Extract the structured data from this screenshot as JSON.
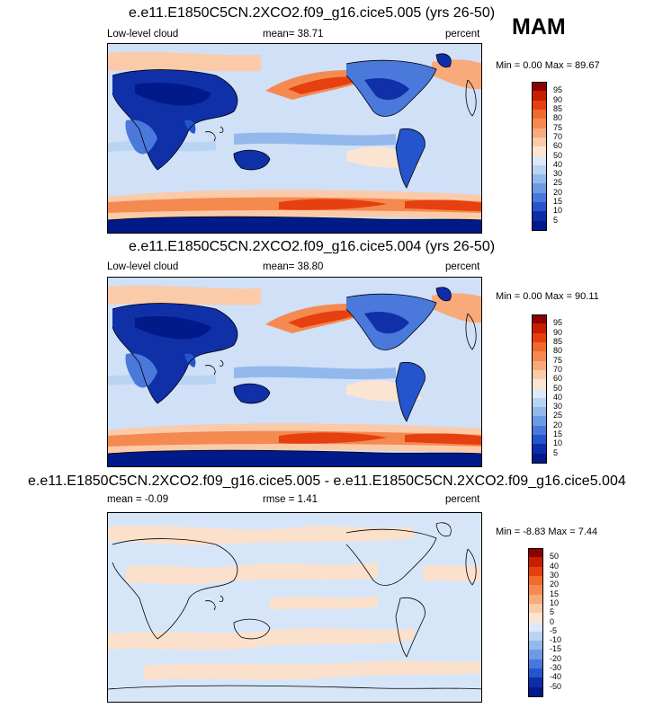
{
  "season": "MAM",
  "panels": [
    {
      "title": "e.e11.E1850C5CN.2XCO2.f09_g16.cice5.005 (yrs 26-50)",
      "left_label": "Low-level cloud",
      "mid_label": "mean=  38.71",
      "right_label": "percent",
      "minmax": "Min =   0.00 Max =  89.67"
    },
    {
      "title": "e.e11.E1850C5CN.2XCO2.f09_g16.cice5.004 (yrs 26-50)",
      "left_label": "Low-level cloud",
      "mid_label": "mean=  38.80",
      "right_label": "percent",
      "minmax": "Min =   0.00 Max =  90.11"
    },
    {
      "title": "e.e11.E1850C5CN.2XCO2.f09_g16.cice5.005 - e.e11.E1850C5CN.2XCO2.f09_g16.cice5.004",
      "left_label": "mean =  -0.09",
      "mid_label": "rmse =   1.41",
      "right_label": "percent",
      "minmax": "Min =  -8.83 Max =   7.44"
    }
  ],
  "colorbar_abs": {
    "labels": [
      "95",
      "90",
      "85",
      "80",
      "75",
      "70",
      "60",
      "50",
      "40",
      "30",
      "25",
      "20",
      "15",
      "10",
      "5"
    ],
    "colors": [
      "#8b0000",
      "#c81e00",
      "#e64010",
      "#f06a2a",
      "#f58a50",
      "#f8aa7a",
      "#fbcaa8",
      "#fbe4d2",
      "#dce9f8",
      "#b9d3f3",
      "#93b9ec",
      "#6c9be4",
      "#4878db",
      "#2555cc",
      "#0d2ea8",
      "#001a8a"
    ]
  },
  "colorbar_diff": {
    "labels": [
      "50",
      "40",
      "30",
      "20",
      "15",
      "10",
      "5",
      "0",
      "-5",
      "-10",
      "-15",
      "-20",
      "-30",
      "-40",
      "-50"
    ],
    "colors": [
      "#8b0000",
      "#c81e00",
      "#e64010",
      "#f06a2a",
      "#f58a50",
      "#f8aa7a",
      "#fbcaa8",
      "#fbe4d2",
      "#dce9f8",
      "#b9d3f3",
      "#93b9ec",
      "#6c9be4",
      "#4878db",
      "#2555cc",
      "#0d2ea8",
      "#001a8a"
    ]
  },
  "map_colors": {
    "ocean_low": "#cfe0f7",
    "ocean_mid": "#fbe0cc",
    "storm_track": "#f07a40",
    "storm_core": "#e04a15",
    "land_dry": "#1030a8",
    "land_mid": "#4a78db",
    "land_light": "#7aa2e6",
    "antarctic": "#001a8a",
    "diff_pos": "#fbe0cc",
    "diff_neg": "#d6e6f8",
    "coast": "#000000"
  }
}
